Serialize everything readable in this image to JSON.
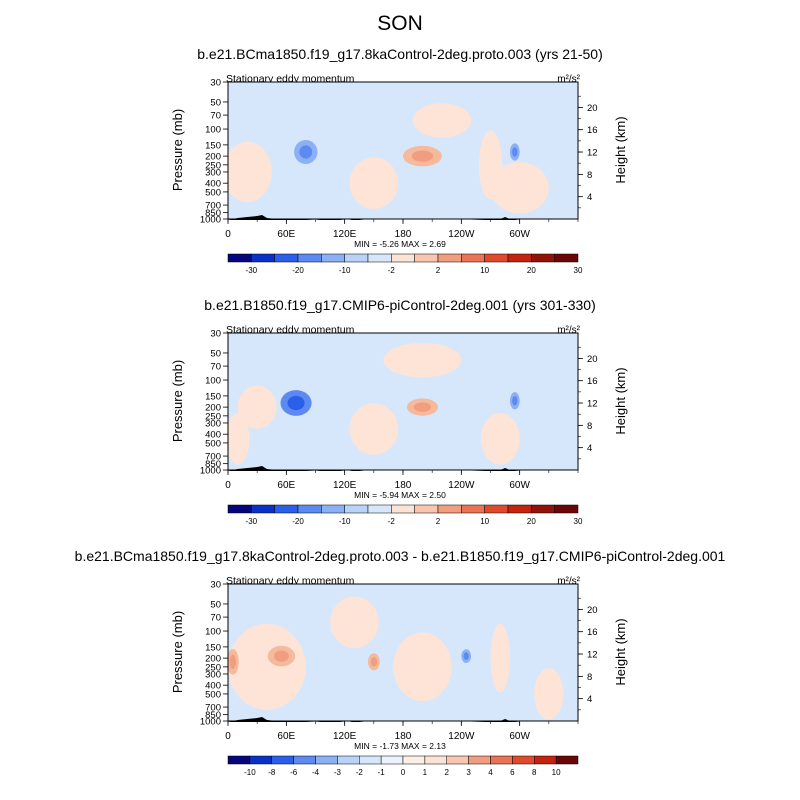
{
  "page_title": "SON",
  "chart_data": [
    {
      "type": "heatmap",
      "title": "b.e21.BCma1850.f19_g17.8kaControl-2deg.proto.003 (yrs 21-50)",
      "subtitle": "Stationary eddy momentum",
      "units": "m²/s²",
      "ylabel": "Pressure (mb)",
      "y2label": "Height (km)",
      "xticks": [
        "0",
        "60E",
        "120E",
        "180",
        "120W",
        "60W"
      ],
      "yticks": [
        "30",
        "50",
        "70",
        "100",
        "150",
        "200",
        "250",
        "300",
        "400",
        "500",
        "700",
        "850",
        "1000"
      ],
      "y2ticks": [
        "20",
        "16",
        "12",
        "8",
        "4"
      ],
      "stats": "MIN = -5.26 MAX = 2.69",
      "colorbar_labels": [
        "-30",
        "-20",
        "-10",
        "-2",
        "2",
        "10",
        "20",
        "30"
      ],
      "colorbar_colors": [
        "#05067b",
        "#0a31c7",
        "#2a5fe9",
        "#5c8af0",
        "#8bb0f3",
        "#b8d3f7",
        "#d6e7fb",
        "#fbe3d6",
        "#f7c5b0",
        "#f19e80",
        "#eb7355",
        "#df4a2d",
        "#c4230f",
        "#921108",
        "#6b0606"
      ],
      "blobs": [
        {
          "lon": 80,
          "p": 180,
          "rlon": 12,
          "rp": 0.14,
          "v": -3
        },
        {
          "lon": 200,
          "p": 200,
          "rlon": 20,
          "rp": 0.12,
          "v": 1.5
        },
        {
          "lon": 295,
          "p": 180,
          "rlon": 5,
          "rp": 0.1,
          "v": -2
        },
        {
          "lon": 20,
          "p": 300,
          "rlon": 25,
          "rp": 0.35,
          "v": 1
        },
        {
          "lon": 150,
          "p": 400,
          "rlon": 25,
          "rp": 0.3,
          "v": 1
        },
        {
          "lon": 220,
          "p": 80,
          "rlon": 30,
          "rp": 0.2,
          "v": 1
        },
        {
          "lon": 300,
          "p": 450,
          "rlon": 30,
          "rp": 0.3,
          "v": 1
        },
        {
          "lon": 270,
          "p": 250,
          "rlon": 12,
          "rp": 0.4,
          "v": 1
        }
      ]
    },
    {
      "type": "heatmap",
      "title": "b.e21.B1850.f19_g17.CMIP6-piControl-2deg.001 (yrs 301-330)",
      "subtitle": "Stationary eddy momentum",
      "units": "m²/s²",
      "ylabel": "Pressure (mb)",
      "y2label": "Height (km)",
      "xticks": [
        "0",
        "60E",
        "120E",
        "180",
        "120W",
        "60W"
      ],
      "yticks": [
        "30",
        "50",
        "70",
        "100",
        "150",
        "200",
        "250",
        "300",
        "400",
        "500",
        "700",
        "850",
        "1000"
      ],
      "y2ticks": [
        "20",
        "16",
        "12",
        "8",
        "4"
      ],
      "stats": "MIN = -5.94 MAX = 2.50",
      "colorbar_labels": [
        "-30",
        "-20",
        "-10",
        "-2",
        "2",
        "10",
        "20",
        "30"
      ],
      "colorbar_colors": [
        "#05067b",
        "#0a31c7",
        "#2a5fe9",
        "#5c8af0",
        "#8bb0f3",
        "#b8d3f7",
        "#d6e7fb",
        "#fbe3d6",
        "#f7c5b0",
        "#f19e80",
        "#eb7355",
        "#df4a2d",
        "#c4230f",
        "#921108",
        "#6b0606"
      ],
      "blobs": [
        {
          "lon": 70,
          "p": 180,
          "rlon": 16,
          "rp": 0.15,
          "v": -4
        },
        {
          "lon": 200,
          "p": 200,
          "rlon": 16,
          "rp": 0.1,
          "v": 1.5
        },
        {
          "lon": 295,
          "p": 170,
          "rlon": 5,
          "rp": 0.1,
          "v": -2
        },
        {
          "lon": 30,
          "p": 200,
          "rlon": 20,
          "rp": 0.25,
          "v": 1
        },
        {
          "lon": 200,
          "p": 60,
          "rlon": 40,
          "rp": 0.2,
          "v": 1
        },
        {
          "lon": 150,
          "p": 350,
          "rlon": 25,
          "rp": 0.3,
          "v": 1
        },
        {
          "lon": 280,
          "p": 450,
          "rlon": 20,
          "rp": 0.3,
          "v": 1
        },
        {
          "lon": 10,
          "p": 450,
          "rlon": 12,
          "rp": 0.3,
          "v": 1
        }
      ]
    },
    {
      "type": "heatmap",
      "title": "b.e21.BCma1850.f19_g17.8kaControl-2deg.proto.003 - b.e21.B1850.f19_g17.CMIP6-piControl-2deg.001",
      "subtitle": "Stationary eddy momentum",
      "units": "m²/s²",
      "ylabel": "Pressure (mb)",
      "y2label": "Height (km)",
      "xticks": [
        "0",
        "60E",
        "120E",
        "180",
        "120W",
        "60W"
      ],
      "yticks": [
        "30",
        "50",
        "70",
        "100",
        "150",
        "200",
        "250",
        "300",
        "400",
        "500",
        "700",
        "850",
        "1000"
      ],
      "y2ticks": [
        "20",
        "16",
        "12",
        "8",
        "4"
      ],
      "stats": "MIN = -1.73 MAX = 2.13",
      "colorbar_labels": [
        "-10",
        "-8",
        "-6",
        "-4",
        "-3",
        "-2",
        "-1",
        "0",
        "1",
        "2",
        "3",
        "4",
        "6",
        "8",
        "10"
      ],
      "colorbar_colors": [
        "#05067b",
        "#0a31c7",
        "#2a5fe9",
        "#5c8af0",
        "#8bb0f3",
        "#b8d3f7",
        "#d6e7fb",
        "#eaf2fd",
        "#fdeee6",
        "#fbe3d6",
        "#f7c5b0",
        "#f19e80",
        "#eb7355",
        "#df4a2d",
        "#c4230f",
        "#6b0606"
      ],
      "blobs": [
        {
          "lon": 55,
          "p": 190,
          "rlon": 14,
          "rp": 0.12,
          "v": 1.5
        },
        {
          "lon": 5,
          "p": 220,
          "rlon": 6,
          "rp": 0.15,
          "v": 1.5
        },
        {
          "lon": 150,
          "p": 220,
          "rlon": 6,
          "rp": 0.1,
          "v": 1.5
        },
        {
          "lon": 245,
          "p": 190,
          "rlon": 5,
          "rp": 0.08,
          "v": -1.5
        },
        {
          "lon": 40,
          "p": 250,
          "rlon": 40,
          "rp": 0.5,
          "v": 0.5
        },
        {
          "lon": 130,
          "p": 80,
          "rlon": 25,
          "rp": 0.3,
          "v": 0.5
        },
        {
          "lon": 200,
          "p": 250,
          "rlon": 30,
          "rp": 0.4,
          "v": 0.5
        },
        {
          "lon": 280,
          "p": 200,
          "rlon": 10,
          "rp": 0.4,
          "v": 0.5
        },
        {
          "lon": 330,
          "p": 500,
          "rlon": 15,
          "rp": 0.3,
          "v": 0.5
        }
      ]
    }
  ]
}
